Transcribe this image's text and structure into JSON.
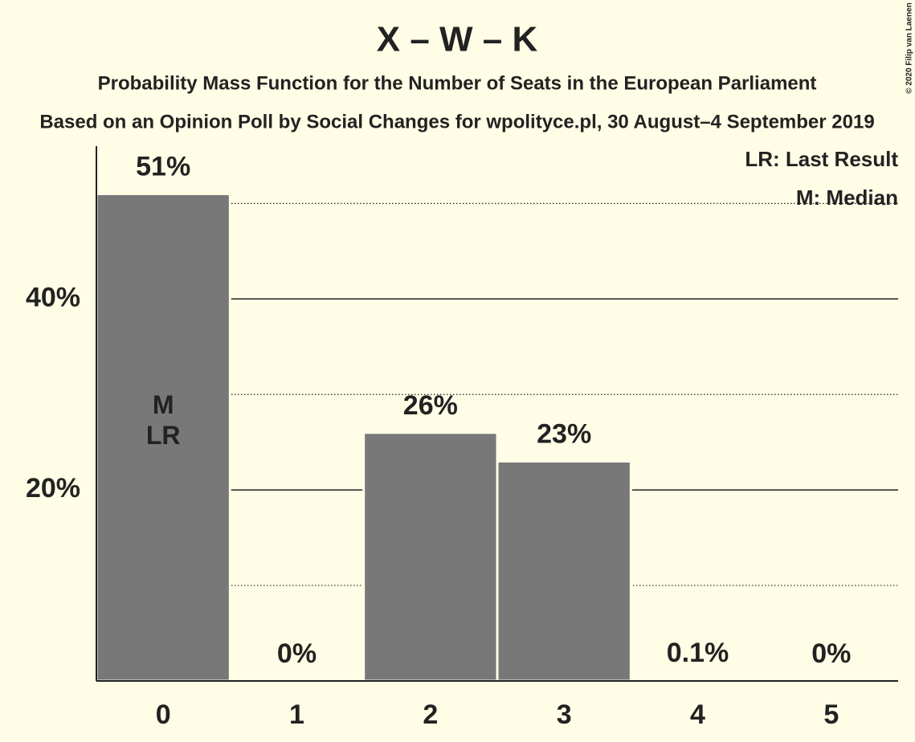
{
  "chart_data": {
    "type": "bar",
    "title": "X – W – K",
    "subtitle": "Probability Mass Function for the Number of Seats in the European Parliament",
    "subtitle2": "Based on an Opinion Poll by Social Changes for wpolityce.pl, 30 August–4 September 2019",
    "credit": "© 2020 Filip van Laenen",
    "legend_notes": [
      "LR: Last Result",
      "M: Median"
    ],
    "categories": [
      "0",
      "1",
      "2",
      "3",
      "4",
      "5"
    ],
    "values": [
      51,
      0,
      26,
      23,
      0.1,
      0
    ],
    "value_labels": [
      "51%",
      "0%",
      "26%",
      "23%",
      "0.1%",
      "0%"
    ],
    "bar_labels": [
      [
        "M",
        "LR"
      ],
      null,
      null,
      null,
      null,
      null
    ],
    "color": "#787878",
    "ylim": [
      0,
      56
    ],
    "yticks": [
      {
        "value": 20,
        "label": "20%"
      },
      {
        "value": 40,
        "label": "40%"
      }
    ],
    "minor_gridlines": [
      10,
      30,
      50
    ],
    "grid": true
  }
}
